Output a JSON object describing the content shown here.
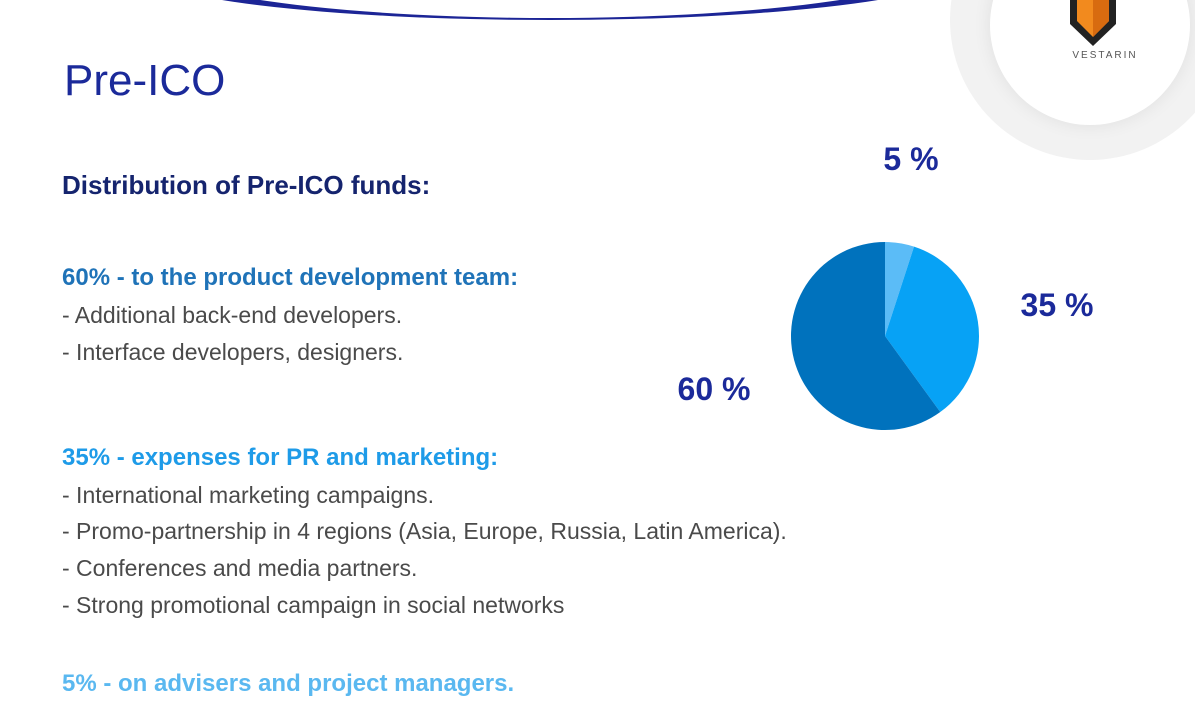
{
  "header": {
    "title": "Pre-ICO",
    "logo": {
      "text": "VESTARIN",
      "icon": "shield-logo-icon"
    }
  },
  "subtitle": "Distribution of Pre-ICO funds:",
  "sections": [
    {
      "heading": "60% - to the product development team:",
      "color": "#1f73b8",
      "bullets": [
        "- Additional back-end developers.",
        "- Interface developers, designers."
      ]
    },
    {
      "heading": "35% - expenses for PR and marketing:",
      "color": "#1e9be8",
      "bullets": [
        "- International marketing campaigns.",
        "- Promo-partnership in 4 regions (Asia, Europe, Russia, Latin America).",
        "- Conferences and media partners.",
        "- Strong promotional campaign in social networks"
      ]
    },
    {
      "heading": "5% - on advisers and project managers.",
      "color": "#5ab8f0",
      "bullets": []
    }
  ],
  "chart_data": {
    "type": "pie",
    "categories": [
      "",
      "",
      ""
    ],
    "values": [
      5,
      35,
      60
    ],
    "labels": [
      "5 %",
      "35 %",
      "60 %"
    ],
    "colors": [
      "#5bbcf7",
      "#07a2f5",
      "#0072bd"
    ]
  },
  "colors": {
    "title": "#1b2a9a",
    "accent_band": "#1c2596",
    "logo_orange": "#f28a1e"
  }
}
